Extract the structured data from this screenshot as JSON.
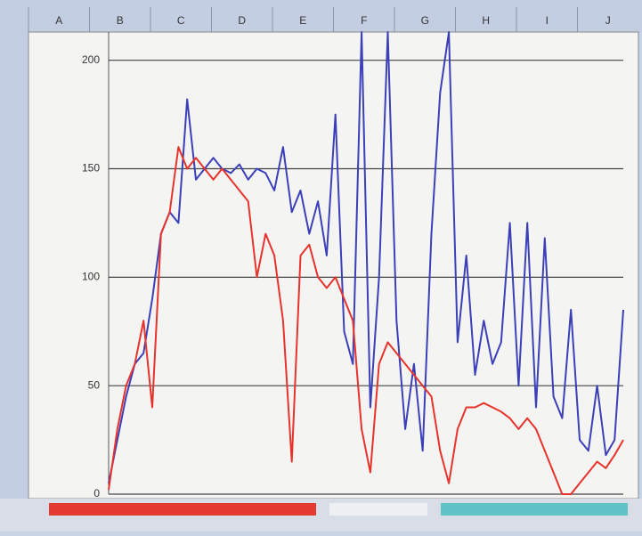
{
  "columns": [
    "A",
    "B",
    "C",
    "D",
    "E",
    "F",
    "G",
    "H",
    "I",
    "J"
  ],
  "chart_data": {
    "type": "line",
    "ylim": [
      0,
      213
    ],
    "yticks": [
      0,
      50,
      100,
      150,
      200
    ],
    "grid": true,
    "series": [
      {
        "color": "#3b3fb8",
        "values": [
          5,
          25,
          45,
          60,
          65,
          90,
          120,
          130,
          125,
          182,
          145,
          150,
          155,
          150,
          148,
          152,
          145,
          150,
          148,
          140,
          160,
          130,
          140,
          120,
          135,
          110,
          175,
          75,
          60,
          213,
          40,
          100,
          213,
          80,
          30,
          60,
          20,
          120,
          185,
          213,
          70,
          110,
          55,
          80,
          60,
          70,
          125,
          50,
          125,
          40,
          118,
          45,
          35,
          85,
          25,
          20,
          50,
          18,
          25,
          85
        ]
      },
      {
        "color": "#e8322c",
        "values": [
          2,
          30,
          50,
          60,
          80,
          40,
          120,
          130,
          160,
          150,
          155,
          150,
          145,
          150,
          145,
          140,
          135,
          100,
          120,
          110,
          80,
          15,
          110,
          115,
          100,
          95,
          100,
          90,
          80,
          30,
          10,
          60,
          70,
          65,
          60,
          55,
          50,
          45,
          20,
          5,
          30,
          40,
          40,
          42,
          40,
          38,
          35,
          30,
          35,
          30,
          20,
          10,
          0,
          0,
          5,
          10,
          15,
          12,
          18,
          25
        ]
      }
    ]
  }
}
